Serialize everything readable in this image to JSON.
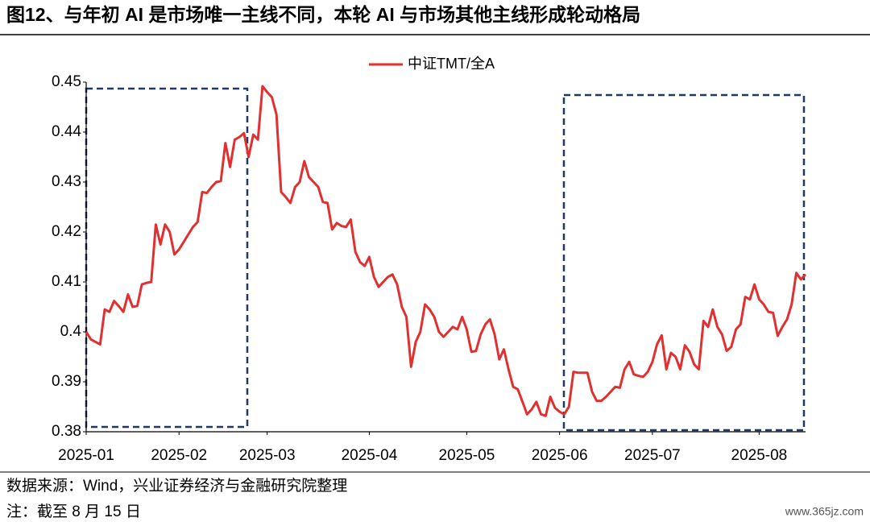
{
  "chart_data": {
    "type": "line",
    "title": "图12、与年初 AI 是市场唯一主线不同，本轮 AI 与市场其他主线形成轮动格局",
    "categories": [
      "2025-01",
      null,
      null,
      null,
      null,
      null,
      null,
      null,
      null,
      null,
      null,
      null,
      null,
      null,
      null,
      null,
      null,
      null,
      null,
      null,
      "2025-02",
      null,
      null,
      null,
      null,
      null,
      null,
      null,
      null,
      null,
      null,
      null,
      null,
      null,
      null,
      null,
      null,
      null,
      null,
      "2025-03",
      null,
      null,
      null,
      null,
      null,
      null,
      null,
      null,
      null,
      null,
      null,
      null,
      null,
      null,
      null,
      null,
      null,
      null,
      null,
      null,
      null,
      "2025-04",
      null,
      null,
      null,
      null,
      null,
      null,
      null,
      null,
      null,
      null,
      null,
      null,
      null,
      null,
      null,
      null,
      null,
      null,
      null,
      null,
      "2025-05",
      null,
      null,
      null,
      null,
      null,
      null,
      null,
      null,
      null,
      null,
      null,
      null,
      null,
      null,
      null,
      null,
      null,
      null,
      null,
      "2025-06",
      null,
      null,
      null,
      null,
      null,
      null,
      null,
      null,
      null,
      null,
      null,
      null,
      null,
      null,
      null,
      null,
      null,
      null,
      null,
      "2025-07",
      null,
      null,
      null,
      null,
      null,
      null,
      null,
      null,
      null,
      null,
      null,
      null,
      null,
      null,
      null,
      null,
      null,
      null,
      null,
      null,
      null,
      null,
      "2025-08",
      null,
      null,
      null,
      null,
      null,
      null,
      null,
      null,
      null,
      null
    ],
    "series": [
      {
        "name": "中证TMT/全A",
        "color": "#e03030",
        "values": [
          0.4,
          0.3985,
          0.398,
          0.3975,
          0.4045,
          0.404,
          0.4062,
          0.4052,
          0.404,
          0.4075,
          0.405,
          0.4052,
          0.4095,
          0.4098,
          0.41,
          0.4215,
          0.4175,
          0.4215,
          0.42,
          0.4155,
          0.4165,
          0.418,
          0.4195,
          0.421,
          0.422,
          0.428,
          0.4278,
          0.429,
          0.43,
          0.4302,
          0.4378,
          0.433,
          0.4385,
          0.439,
          0.4398,
          0.435,
          0.4395,
          0.4385,
          0.4492,
          0.448,
          0.447,
          0.4435,
          0.428,
          0.427,
          0.4258,
          0.429,
          0.43,
          0.4342,
          0.431,
          0.43,
          0.429,
          0.426,
          0.4258,
          0.4205,
          0.4218,
          0.4212,
          0.421,
          0.4225,
          0.416,
          0.414,
          0.4132,
          0.415,
          0.411,
          0.409,
          0.41,
          0.411,
          0.4115,
          0.4095,
          0.405,
          0.403,
          0.393,
          0.398,
          0.4,
          0.4055,
          0.4045,
          0.403,
          0.4,
          0.399,
          0.4,
          0.401,
          0.4005,
          0.403,
          0.4005,
          0.396,
          0.3962,
          0.3995,
          0.4015,
          0.4025,
          0.3995,
          0.3945,
          0.3965,
          0.3925,
          0.389,
          0.3885,
          0.386,
          0.3835,
          0.3845,
          0.386,
          0.3835,
          0.3832,
          0.387,
          0.3848,
          0.384,
          0.3835,
          0.385,
          0.392,
          0.3918,
          0.3918,
          0.3918,
          0.388,
          0.3862,
          0.3862,
          0.387,
          0.388,
          0.389,
          0.3888,
          0.3925,
          0.394,
          0.3915,
          0.3912,
          0.391,
          0.392,
          0.394,
          0.3975,
          0.3993,
          0.3925,
          0.3958,
          0.395,
          0.3925,
          0.3973,
          0.396,
          0.3935,
          0.3925,
          0.4022,
          0.401,
          0.4045,
          0.401,
          0.3995,
          0.3962,
          0.397,
          0.4005,
          0.4015,
          0.407,
          0.4065,
          0.4095,
          0.4065,
          0.4055,
          0.404,
          0.4038,
          0.3992,
          0.401,
          0.4025,
          0.4055,
          0.4118,
          0.4105,
          0.4115
        ]
      }
    ],
    "ylim": [
      0.38,
      0.45
    ],
    "yticks": [
      0.38,
      0.39,
      0.4,
      0.41,
      0.42,
      0.43,
      0.44,
      0.45
    ],
    "grid": false,
    "legend": "top",
    "source": "数据来源：Wind，兴业证券经济与金融研究院整理",
    "note": "注：截至 8 月 15 日",
    "watermark": "www.365jz.com"
  }
}
